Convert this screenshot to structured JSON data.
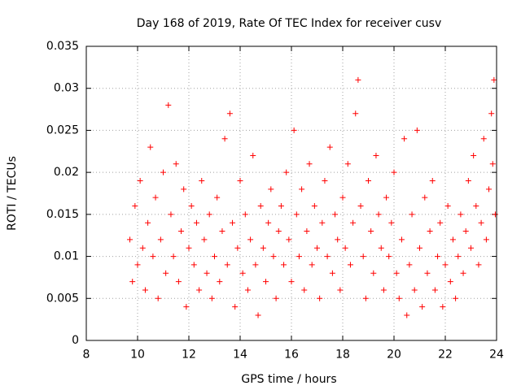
{
  "chart_data": {
    "type": "scatter",
    "title": "Day 168 of 2019, Rate Of TEC Index for receiver cusv",
    "xlabel": "GPS time / hours",
    "ylabel": "ROTI / TECUs",
    "xlim": [
      8,
      24
    ],
    "ylim": [
      0,
      0.035
    ],
    "x_ticks": [
      "8",
      "10",
      "12",
      "14",
      "16",
      "18",
      "20",
      "22",
      "24"
    ],
    "y_ticks": [
      "0",
      "0.005",
      "0.01",
      "0.015",
      "0.02",
      "0.025",
      "0.03",
      "0.035"
    ],
    "grid": true,
    "marker": "+",
    "color": "#ff0000",
    "series": [
      {
        "name": "ROTI",
        "points": [
          [
            9.7,
            0.012
          ],
          [
            9.8,
            0.007
          ],
          [
            9.9,
            0.016
          ],
          [
            10.0,
            0.009
          ],
          [
            10.1,
            0.019
          ],
          [
            10.2,
            0.011
          ],
          [
            10.3,
            0.006
          ],
          [
            10.4,
            0.014
          ],
          [
            10.5,
            0.023
          ],
          [
            10.6,
            0.01
          ],
          [
            10.7,
            0.017
          ],
          [
            10.8,
            0.005
          ],
          [
            10.9,
            0.012
          ],
          [
            11.0,
            0.02
          ],
          [
            11.1,
            0.008
          ],
          [
            11.2,
            0.028
          ],
          [
            11.3,
            0.015
          ],
          [
            11.4,
            0.01
          ],
          [
            11.5,
            0.021
          ],
          [
            11.6,
            0.007
          ],
          [
            11.7,
            0.013
          ],
          [
            11.8,
            0.018
          ],
          [
            11.9,
            0.004
          ],
          [
            12.0,
            0.011
          ],
          [
            12.1,
            0.016
          ],
          [
            12.2,
            0.009
          ],
          [
            12.3,
            0.014
          ],
          [
            12.4,
            0.006
          ],
          [
            12.5,
            0.019
          ],
          [
            12.6,
            0.012
          ],
          [
            12.7,
            0.008
          ],
          [
            12.8,
            0.015
          ],
          [
            12.9,
            0.005
          ],
          [
            13.0,
            0.01
          ],
          [
            13.1,
            0.017
          ],
          [
            13.2,
            0.007
          ],
          [
            13.3,
            0.013
          ],
          [
            13.4,
            0.024
          ],
          [
            13.5,
            0.009
          ],
          [
            13.6,
            0.027
          ],
          [
            13.7,
            0.014
          ],
          [
            13.8,
            0.004
          ],
          [
            13.9,
            0.011
          ],
          [
            14.0,
            0.019
          ],
          [
            14.1,
            0.008
          ],
          [
            14.2,
            0.015
          ],
          [
            14.3,
            0.006
          ],
          [
            14.4,
            0.012
          ],
          [
            14.5,
            0.022
          ],
          [
            14.6,
            0.009
          ],
          [
            14.7,
            0.003
          ],
          [
            14.8,
            0.016
          ],
          [
            14.9,
            0.011
          ],
          [
            15.0,
            0.007
          ],
          [
            15.1,
            0.014
          ],
          [
            15.2,
            0.018
          ],
          [
            15.3,
            0.01
          ],
          [
            15.4,
            0.005
          ],
          [
            15.5,
            0.013
          ],
          [
            15.6,
            0.016
          ],
          [
            15.7,
            0.009
          ],
          [
            15.8,
            0.02
          ],
          [
            15.9,
            0.012
          ],
          [
            16.0,
            0.007
          ],
          [
            16.1,
            0.025
          ],
          [
            16.2,
            0.015
          ],
          [
            16.3,
            0.01
          ],
          [
            16.4,
            0.018
          ],
          [
            16.5,
            0.006
          ],
          [
            16.6,
            0.013
          ],
          [
            16.7,
            0.021
          ],
          [
            16.8,
            0.009
          ],
          [
            16.9,
            0.016
          ],
          [
            17.0,
            0.011
          ],
          [
            17.1,
            0.005
          ],
          [
            17.2,
            0.014
          ],
          [
            17.3,
            0.019
          ],
          [
            17.4,
            0.01
          ],
          [
            17.5,
            0.023
          ],
          [
            17.6,
            0.008
          ],
          [
            17.7,
            0.015
          ],
          [
            17.8,
            0.012
          ],
          [
            17.9,
            0.006
          ],
          [
            18.0,
            0.017
          ],
          [
            18.1,
            0.011
          ],
          [
            18.2,
            0.021
          ],
          [
            18.3,
            0.009
          ],
          [
            18.4,
            0.014
          ],
          [
            18.5,
            0.027
          ],
          [
            18.6,
            0.031
          ],
          [
            18.7,
            0.016
          ],
          [
            18.8,
            0.01
          ],
          [
            18.9,
            0.005
          ],
          [
            19.0,
            0.019
          ],
          [
            19.1,
            0.013
          ],
          [
            19.2,
            0.008
          ],
          [
            19.3,
            0.022
          ],
          [
            19.4,
            0.015
          ],
          [
            19.5,
            0.011
          ],
          [
            19.6,
            0.006
          ],
          [
            19.7,
            0.017
          ],
          [
            19.8,
            0.01
          ],
          [
            19.9,
            0.014
          ],
          [
            20.0,
            0.02
          ],
          [
            20.1,
            0.008
          ],
          [
            20.2,
            0.005
          ],
          [
            20.3,
            0.012
          ],
          [
            20.4,
            0.024
          ],
          [
            20.5,
            0.003
          ],
          [
            20.6,
            0.009
          ],
          [
            20.7,
            0.015
          ],
          [
            20.8,
            0.006
          ],
          [
            20.9,
            0.025
          ],
          [
            21.0,
            0.011
          ],
          [
            21.1,
            0.004
          ],
          [
            21.2,
            0.017
          ],
          [
            21.3,
            0.008
          ],
          [
            21.4,
            0.013
          ],
          [
            21.5,
            0.019
          ],
          [
            21.6,
            0.006
          ],
          [
            21.7,
            0.01
          ],
          [
            21.8,
            0.014
          ],
          [
            21.9,
            0.004
          ],
          [
            22.0,
            0.009
          ],
          [
            22.1,
            0.016
          ],
          [
            22.2,
            0.007
          ],
          [
            22.3,
            0.012
          ],
          [
            22.4,
            0.005
          ],
          [
            22.5,
            0.01
          ],
          [
            22.6,
            0.015
          ],
          [
            22.7,
            0.008
          ],
          [
            22.8,
            0.013
          ],
          [
            22.9,
            0.019
          ],
          [
            23.0,
            0.011
          ],
          [
            23.1,
            0.022
          ],
          [
            23.2,
            0.016
          ],
          [
            23.3,
            0.009
          ],
          [
            23.4,
            0.014
          ],
          [
            23.5,
            0.024
          ],
          [
            23.6,
            0.012
          ],
          [
            23.7,
            0.018
          ],
          [
            23.8,
            0.027
          ],
          [
            23.85,
            0.021
          ],
          [
            23.9,
            0.031
          ],
          [
            23.95,
            0.015
          ]
        ]
      }
    ]
  }
}
